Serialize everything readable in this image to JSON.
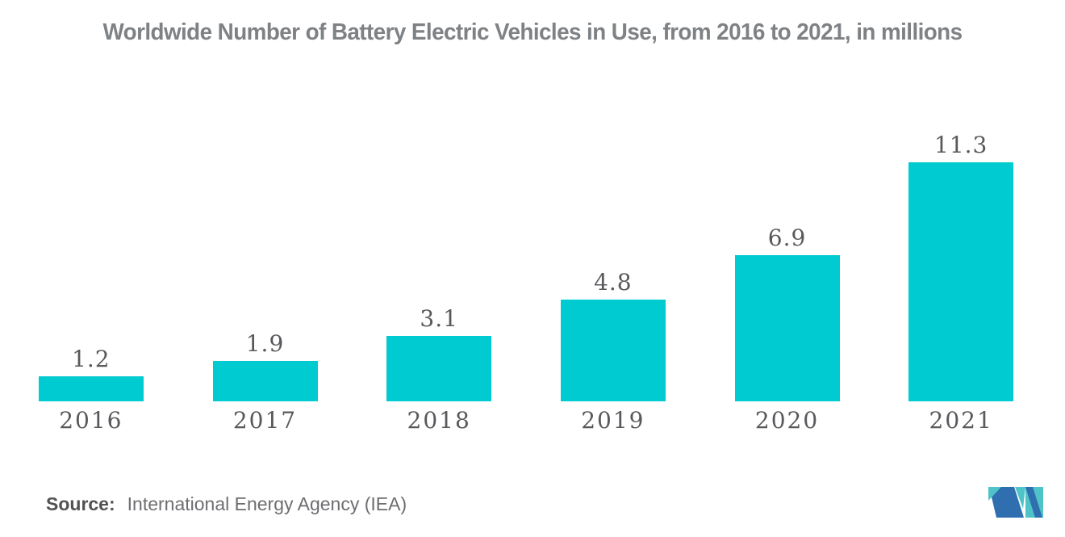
{
  "chart_data": {
    "type": "bar",
    "title": "Worldwide Number of Battery Electric Vehicles in Use, from 2016 to 2021, in millions",
    "categories": [
      "2016",
      "2017",
      "2018",
      "2019",
      "2020",
      "2021"
    ],
    "values": [
      1.2,
      1.9,
      3.1,
      4.8,
      6.9,
      11.3
    ],
    "xlabel": "",
    "ylabel": "",
    "ylim": [
      0,
      12.5
    ],
    "grid": false,
    "legend": false,
    "data_labels": true,
    "bar_color": "#00CBD1"
  },
  "source": {
    "label": "Source:",
    "text": "International Energy Agency (IEA)"
  },
  "branding": {
    "logo_icon": "mordor-intelligence-logo",
    "logo_blue": "#2F6FB0",
    "logo_teal": "#4FC3C8"
  },
  "colors": {
    "background": "#FFFFFF",
    "title_text": "#7F8285",
    "label_text": "#58595C",
    "source_label_text": "#515254",
    "source_text": "#6D6E71"
  }
}
